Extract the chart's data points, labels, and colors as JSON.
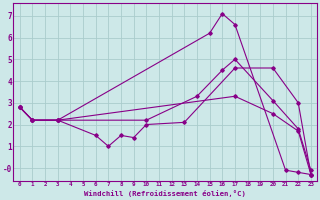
{
  "xlabel": "Windchill (Refroidissement éolien,°C)",
  "bg_color": "#cde8e8",
  "line_color": "#880088",
  "grid_color": "#aacccc",
  "lines": [
    {
      "x": [
        0,
        1,
        3,
        15,
        16,
        17,
        21,
        22,
        23
      ],
      "y": [
        2.8,
        2.2,
        2.2,
        6.2,
        7.1,
        6.6,
        -0.1,
        -0.2,
        -0.3
      ]
    },
    {
      "x": [
        0,
        1,
        3,
        10,
        14,
        16,
        17,
        20,
        22,
        23
      ],
      "y": [
        2.8,
        2.2,
        2.2,
        2.2,
        3.3,
        4.5,
        5.0,
        3.1,
        1.8,
        -0.1
      ]
    },
    {
      "x": [
        0,
        1,
        3,
        6,
        7,
        8,
        9,
        10,
        13,
        17,
        20,
        22,
        23
      ],
      "y": [
        2.8,
        2.2,
        2.2,
        1.5,
        1.0,
        1.5,
        1.4,
        2.0,
        2.1,
        4.6,
        4.6,
        3.0,
        -0.3
      ]
    },
    {
      "x": [
        0,
        1,
        3,
        17,
        20,
        22,
        23
      ],
      "y": [
        2.8,
        2.2,
        2.2,
        3.3,
        2.5,
        1.7,
        -0.3
      ]
    }
  ],
  "xlim": [
    -0.5,
    23.5
  ],
  "ylim": [
    -0.6,
    7.6
  ],
  "xticks": [
    0,
    1,
    2,
    3,
    4,
    5,
    6,
    7,
    8,
    9,
    10,
    11,
    12,
    13,
    14,
    15,
    16,
    17,
    18,
    19,
    20,
    21,
    22,
    23
  ],
  "yticks": [
    0,
    1,
    2,
    3,
    4,
    5,
    6,
    7
  ],
  "ytick_labels": [
    "-0",
    "1",
    "2",
    "3",
    "4",
    "5",
    "6",
    "7"
  ]
}
